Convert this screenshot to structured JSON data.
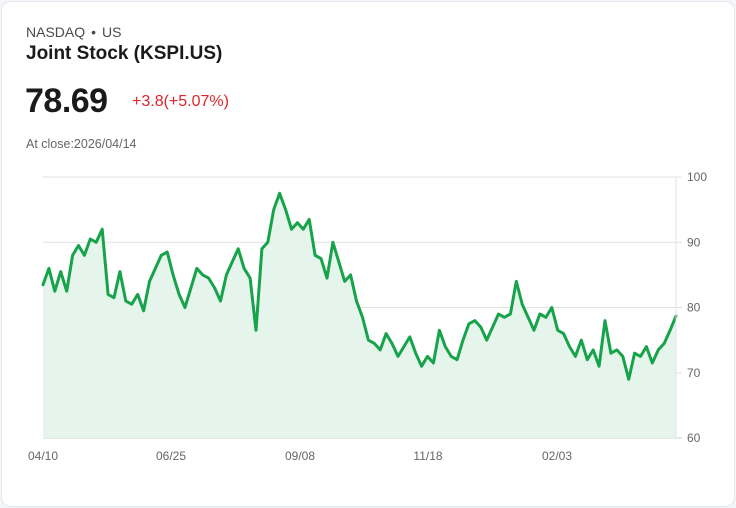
{
  "header": {
    "exchange": "NASDAQ",
    "separator": "•",
    "region": "US",
    "title": "Joint Stock (KSPI.US)",
    "price": "78.69",
    "change": "+3.8(+5.07%)",
    "at_close": "At close:2026/04/14"
  },
  "colors": {
    "line": "#16a34a",
    "fill": "#e6f5ec",
    "change_positive": "#e0262c",
    "grid": "#e2e2e2"
  },
  "chart_data": {
    "type": "area",
    "title": "Joint Stock (KSPI.US)",
    "xlabel": "",
    "ylabel": "",
    "ylim": [
      60,
      100
    ],
    "yticks": [
      100,
      90,
      80,
      70,
      60
    ],
    "xticks": [
      "04/10",
      "06/25",
      "09/08",
      "11/18",
      "02/03"
    ],
    "grid": true,
    "legend": "none",
    "series": [
      {
        "name": "Close",
        "values": [
          83.5,
          86.0,
          82.5,
          85.5,
          82.5,
          88.0,
          89.5,
          88.0,
          90.5,
          90.0,
          92.0,
          82.0,
          81.5,
          85.5,
          81.0,
          80.5,
          82.0,
          79.5,
          84.0,
          86.0,
          88.0,
          88.5,
          85.0,
          82.0,
          80.0,
          83.0,
          86.0,
          85.0,
          84.5,
          83.0,
          81.0,
          85.0,
          87.0,
          89.0,
          86.0,
          84.5,
          76.5,
          89.0,
          90.0,
          95.0,
          97.5,
          95.0,
          92.0,
          93.0,
          92.0,
          93.5,
          88.0,
          87.5,
          84.5,
          90.0,
          87.0,
          84.0,
          85.0,
          81.0,
          78.5,
          75.0,
          74.5,
          73.5,
          76.0,
          74.5,
          72.5,
          74.0,
          75.5,
          73.0,
          71.0,
          72.5,
          71.5,
          76.5,
          74.0,
          72.5,
          72.0,
          75.0,
          77.5,
          78.0,
          77.0,
          75.0,
          77.0,
          79.0,
          78.5,
          79.0,
          84.0,
          80.5,
          78.5,
          76.5,
          79.0,
          78.5,
          80.0,
          76.5,
          76.0,
          74.0,
          72.5,
          75.0,
          72.0,
          73.5,
          71.0,
          78.0,
          73.0,
          73.5,
          72.5,
          69.0,
          73.0,
          72.5,
          74.0,
          71.5,
          73.5,
          74.5,
          76.5,
          78.69
        ]
      }
    ]
  },
  "axis": {
    "y_labels": [
      "100",
      "90",
      "80",
      "70",
      "60"
    ],
    "x_labels": [
      "04/10",
      "06/25",
      "09/08",
      "11/18",
      "02/03"
    ]
  }
}
